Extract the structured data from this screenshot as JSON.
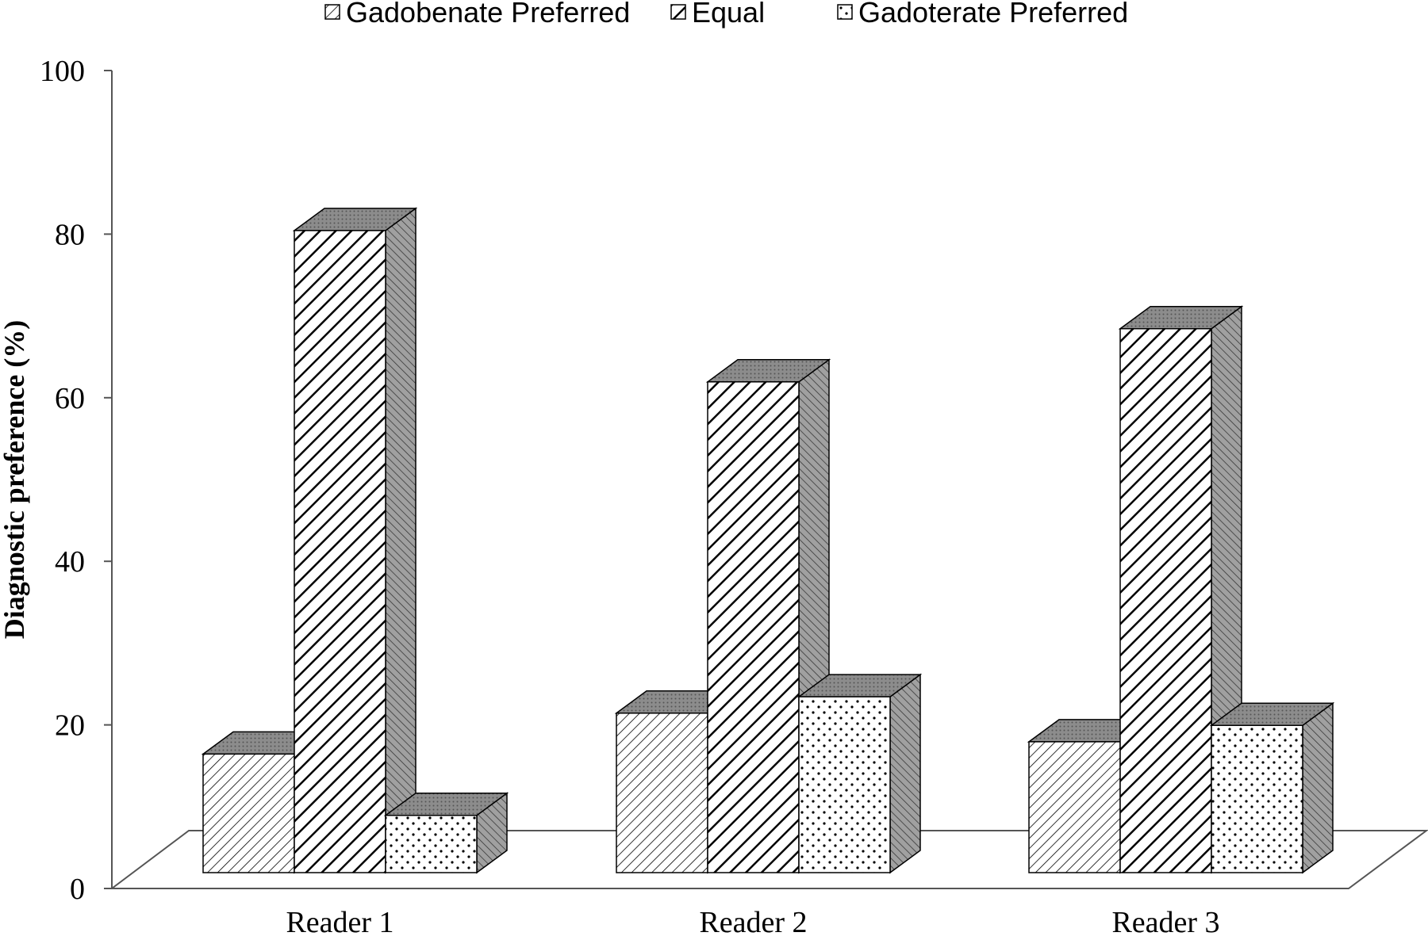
{
  "chart_data": {
    "type": "bar",
    "style": "3d-clustered-column",
    "title": "",
    "xlabel": "",
    "ylabel": "Diagnostic preference (%)",
    "ylim": [
      0,
      100
    ],
    "yticks": [
      "0",
      "20",
      "40",
      "60",
      "80",
      "100"
    ],
    "grid": false,
    "legend_position": "top",
    "categories": [
      "Reader 1",
      "Reader 2",
      "Reader 3"
    ],
    "series": [
      {
        "name": "Gadobenate Preferred",
        "pattern": "fine-diagonal",
        "values": [
          14.5,
          19.5,
          16
        ]
      },
      {
        "name": "Equal",
        "pattern": "bold-diagonal",
        "values": [
          78.5,
          60,
          66.5
        ]
      },
      {
        "name": "Gadoterate Preferred",
        "pattern": "dots",
        "values": [
          7,
          21.5,
          18
        ]
      }
    ],
    "colors": {
      "ink": "#000000",
      "top_face": "#8c8c8c",
      "side_face": "#9a9a9a",
      "background": "#ffffff"
    }
  }
}
